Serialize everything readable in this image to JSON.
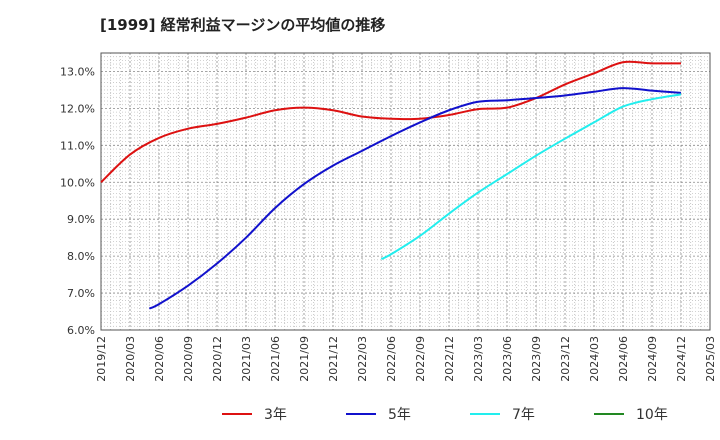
{
  "chart_data": {
    "type": "line",
    "title": "[1999]  経常利益マージンの平均値の推移",
    "xlabel": "",
    "ylabel": "",
    "ylim": [
      6.0,
      13.5
    ],
    "yticks": [
      6.0,
      7.0,
      8.0,
      9.0,
      10.0,
      11.0,
      12.0,
      13.0
    ],
    "ytick_labels": [
      "6.0%",
      "7.0%",
      "8.0%",
      "9.0%",
      "10.0%",
      "11.0%",
      "12.0%",
      "13.0%"
    ],
    "xticks": [
      "2019/12",
      "2020/03",
      "2020/06",
      "2020/09",
      "2020/12",
      "2021/03",
      "2021/06",
      "2021/09",
      "2021/12",
      "2022/03",
      "2022/06",
      "2022/09",
      "2022/12",
      "2023/03",
      "2023/06",
      "2023/09",
      "2023/12",
      "2024/03",
      "2024/06",
      "2024/09",
      "2024/12",
      "2025/03"
    ],
    "grid": true,
    "legend_position": "bottom",
    "series": [
      {
        "name": "3年",
        "color": "#dd1111",
        "x": [
          "2019/12",
          "2020/03",
          "2020/06",
          "2020/09",
          "2020/12",
          "2021/03",
          "2021/06",
          "2021/09",
          "2021/12",
          "2022/03",
          "2022/06",
          "2022/09",
          "2022/12",
          "2023/03",
          "2023/06",
          "2023/09",
          "2023/12",
          "2024/03",
          "2024/06",
          "2024/09",
          "2024/12"
        ],
        "values": [
          10.0,
          10.75,
          11.2,
          11.45,
          11.58,
          11.75,
          11.95,
          12.02,
          11.95,
          11.78,
          11.72,
          11.72,
          11.82,
          11.98,
          12.02,
          12.28,
          12.65,
          12.95,
          13.25,
          13.22,
          13.22
        ]
      },
      {
        "name": "5年",
        "color": "#1111cc",
        "x": [
          "2020/05",
          "2020/06",
          "2020/09",
          "2020/12",
          "2021/03",
          "2021/06",
          "2021/09",
          "2021/12",
          "2022/03",
          "2022/06",
          "2022/09",
          "2022/12",
          "2023/03",
          "2023/06",
          "2023/09",
          "2023/12",
          "2024/03",
          "2024/06",
          "2024/09",
          "2024/12"
        ],
        "values": [
          6.58,
          6.7,
          7.2,
          7.8,
          8.5,
          9.3,
          9.95,
          10.45,
          10.85,
          11.25,
          11.62,
          11.95,
          12.18,
          12.22,
          12.28,
          12.35,
          12.45,
          12.55,
          12.48,
          12.42
        ]
      },
      {
        "name": "7年",
        "color": "#22eeee",
        "x": [
          "2022/05",
          "2022/06",
          "2022/09",
          "2022/12",
          "2023/03",
          "2023/06",
          "2023/09",
          "2023/12",
          "2024/03",
          "2024/06",
          "2024/09",
          "2024/12"
        ],
        "values": [
          7.92,
          8.05,
          8.55,
          9.15,
          9.72,
          10.22,
          10.72,
          11.18,
          11.62,
          12.05,
          12.25,
          12.38
        ]
      },
      {
        "name": "10年",
        "color": "#228822",
        "x": [],
        "values": []
      }
    ]
  }
}
